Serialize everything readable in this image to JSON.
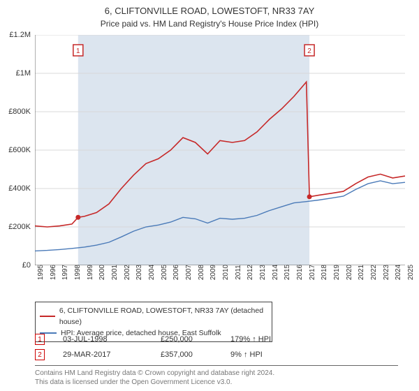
{
  "titles": {
    "main": "6, CLIFTONVILLE ROAD, LOWESTOFT, NR33 7AY",
    "sub": "Price paid vs. HM Land Registry's House Price Index (HPI)"
  },
  "chart": {
    "type": "line",
    "background_color": "#ffffff",
    "plot_band_color": "#dce5ef",
    "axis_line_color": "#606060",
    "grid_color": "#d8d8d8",
    "ylim": [
      0,
      1200000
    ],
    "ytick_step": 200000,
    "y_labels": [
      "£0",
      "£200K",
      "£400K",
      "£600K",
      "£800K",
      "£1M",
      "£1.2M"
    ],
    "xlim": [
      1995,
      2025
    ],
    "x_labels": [
      "1995",
      "1996",
      "1997",
      "1998",
      "1999",
      "2000",
      "2001",
      "2002",
      "2003",
      "2004",
      "2005",
      "2006",
      "2007",
      "2008",
      "2009",
      "2010",
      "2011",
      "2012",
      "2013",
      "2014",
      "2015",
      "2016",
      "2017",
      "2018",
      "2019",
      "2020",
      "2021",
      "2022",
      "2023",
      "2024",
      "2025"
    ],
    "plot_band": {
      "start_year": 1998.5,
      "end_year": 2017.25
    },
    "series": [
      {
        "name": "red",
        "color": "#c62828",
        "line_width": 1.6,
        "points": [
          [
            1995,
            205000
          ],
          [
            1996,
            200000
          ],
          [
            1997,
            205000
          ],
          [
            1998,
            215000
          ],
          [
            1998.5,
            250000
          ],
          [
            1999,
            255000
          ],
          [
            2000,
            275000
          ],
          [
            2001,
            320000
          ],
          [
            2002,
            400000
          ],
          [
            2003,
            470000
          ],
          [
            2004,
            530000
          ],
          [
            2005,
            555000
          ],
          [
            2006,
            600000
          ],
          [
            2007,
            665000
          ],
          [
            2008,
            640000
          ],
          [
            2009,
            580000
          ],
          [
            2010,
            650000
          ],
          [
            2011,
            640000
          ],
          [
            2012,
            650000
          ],
          [
            2013,
            695000
          ],
          [
            2014,
            760000
          ],
          [
            2015,
            815000
          ],
          [
            2016,
            880000
          ],
          [
            2017,
            955000
          ],
          [
            2017.25,
            357000
          ],
          [
            2018,
            365000
          ],
          [
            2019,
            375000
          ],
          [
            2020,
            385000
          ],
          [
            2021,
            425000
          ],
          [
            2022,
            460000
          ],
          [
            2023,
            475000
          ],
          [
            2024,
            455000
          ],
          [
            2025,
            465000
          ]
        ]
      },
      {
        "name": "blue",
        "color": "#4a7ab8",
        "line_width": 1.4,
        "points": [
          [
            1995,
            75000
          ],
          [
            1996,
            78000
          ],
          [
            1997,
            82000
          ],
          [
            1998,
            88000
          ],
          [
            1999,
            95000
          ],
          [
            2000,
            105000
          ],
          [
            2001,
            120000
          ],
          [
            2002,
            148000
          ],
          [
            2003,
            178000
          ],
          [
            2004,
            200000
          ],
          [
            2005,
            210000
          ],
          [
            2006,
            225000
          ],
          [
            2007,
            250000
          ],
          [
            2008,
            242000
          ],
          [
            2009,
            220000
          ],
          [
            2010,
            245000
          ],
          [
            2011,
            240000
          ],
          [
            2012,
            245000
          ],
          [
            2013,
            260000
          ],
          [
            2014,
            285000
          ],
          [
            2015,
            305000
          ],
          [
            2016,
            325000
          ],
          [
            2017,
            332000
          ],
          [
            2018,
            340000
          ],
          [
            2019,
            350000
          ],
          [
            2020,
            360000
          ],
          [
            2021,
            395000
          ],
          [
            2022,
            425000
          ],
          [
            2023,
            440000
          ],
          [
            2024,
            425000
          ],
          [
            2025,
            432000
          ]
        ]
      }
    ],
    "events": [
      {
        "marker": "1",
        "x_year": 1998.5,
        "y_value": 250000
      },
      {
        "marker": "2",
        "x_year": 2017.25,
        "y_value": 357000
      }
    ]
  },
  "legend": {
    "items": [
      {
        "color": "#c62828",
        "label": "6, CLIFTONVILLE ROAD, LOWESTOFT, NR33 7AY (detached house)"
      },
      {
        "color": "#4a7ab8",
        "label": "HPI: Average price, detached house, East Suffolk"
      }
    ]
  },
  "event_table": [
    {
      "marker": "1",
      "date": "03-JUL-1998",
      "price": "£250,000",
      "hpi": "179% ↑ HPI"
    },
    {
      "marker": "2",
      "date": "29-MAR-2017",
      "price": "£357,000",
      "hpi": "9% ↑ HPI"
    }
  ],
  "license": {
    "line1": "Contains HM Land Registry data © Crown copyright and database right 2024.",
    "line2": "This data is licensed under the Open Government Licence v3.0."
  }
}
